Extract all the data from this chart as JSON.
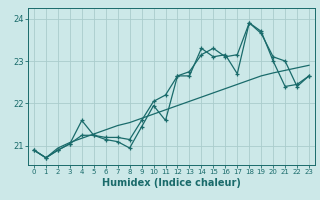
{
  "title": "",
  "xlabel": "Humidex (Indice chaleur)",
  "background_color": "#cce8e8",
  "grid_color": "#aacccc",
  "line_color": "#1a6b6b",
  "xlim": [
    -0.5,
    23.5
  ],
  "ylim": [
    20.55,
    24.25
  ],
  "yticks": [
    21,
    22,
    23,
    24
  ],
  "xticks": [
    0,
    1,
    2,
    3,
    4,
    5,
    6,
    7,
    8,
    9,
    10,
    11,
    12,
    13,
    14,
    15,
    16,
    17,
    18,
    19,
    20,
    21,
    22,
    23
  ],
  "series1_x": [
    0,
    1,
    2,
    3,
    4,
    5,
    6,
    7,
    8,
    9,
    10,
    11,
    12,
    13,
    14,
    15,
    16,
    17,
    18,
    19,
    20,
    21,
    22,
    23
  ],
  "series1_y": [
    20.9,
    20.72,
    20.9,
    21.05,
    21.6,
    21.25,
    21.15,
    21.1,
    20.95,
    21.45,
    21.95,
    21.6,
    22.65,
    22.65,
    23.3,
    23.1,
    23.15,
    22.7,
    23.9,
    23.7,
    23.0,
    22.4,
    22.45,
    22.65
  ],
  "series2_x": [
    0,
    1,
    2,
    3,
    4,
    5,
    6,
    7,
    8,
    9,
    10,
    11,
    12,
    13,
    14,
    15,
    16,
    17,
    18,
    19,
    20,
    21,
    22,
    23
  ],
  "series2_y": [
    20.9,
    20.72,
    20.9,
    21.05,
    21.25,
    21.25,
    21.2,
    21.2,
    21.15,
    21.6,
    22.05,
    22.2,
    22.65,
    22.75,
    23.15,
    23.3,
    23.1,
    23.15,
    23.9,
    23.65,
    23.1,
    23.0,
    22.4,
    22.65
  ],
  "series3_x": [
    0,
    1,
    2,
    3,
    4,
    5,
    6,
    7,
    8,
    9,
    10,
    11,
    12,
    13,
    14,
    15,
    16,
    17,
    18,
    19,
    20,
    21,
    22,
    23
  ],
  "series3_y": [
    20.9,
    20.72,
    20.95,
    21.08,
    21.18,
    21.28,
    21.38,
    21.48,
    21.55,
    21.65,
    21.75,
    21.85,
    21.95,
    22.05,
    22.15,
    22.25,
    22.35,
    22.45,
    22.55,
    22.65,
    22.72,
    22.78,
    22.84,
    22.9
  ]
}
